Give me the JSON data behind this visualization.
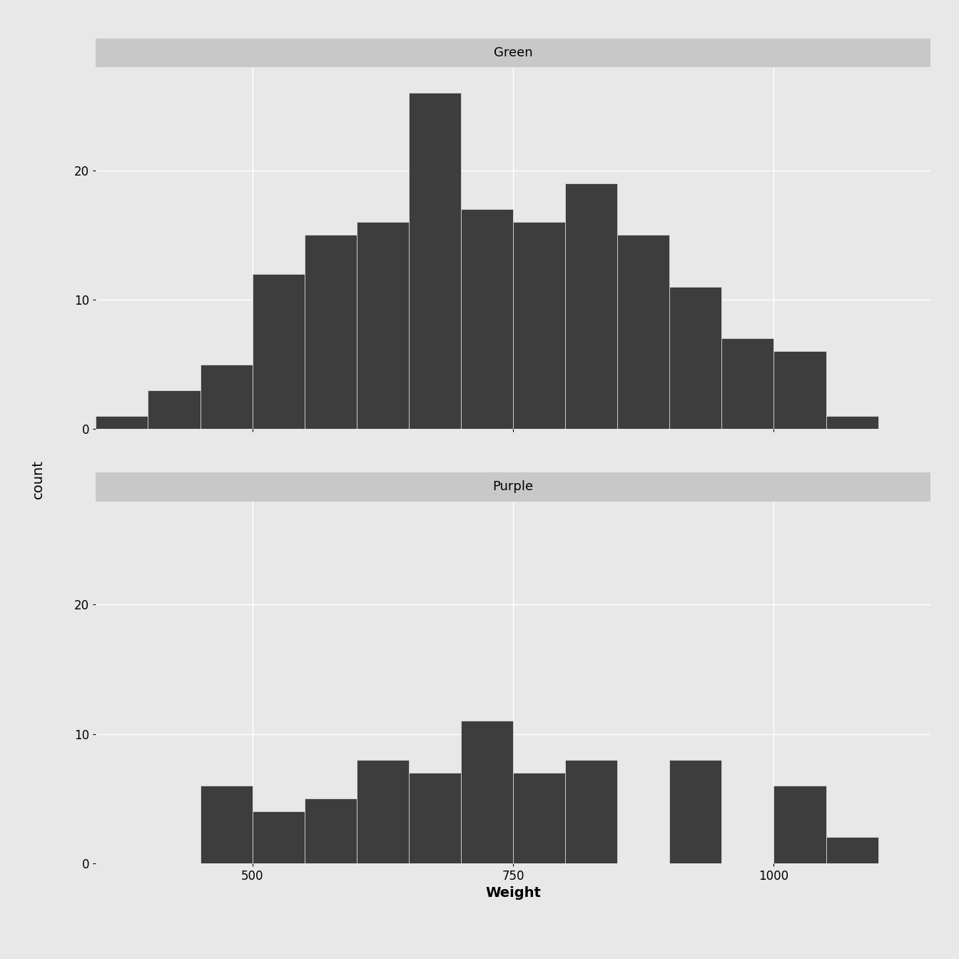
{
  "green_bin_edges": [
    350,
    400,
    450,
    500,
    550,
    600,
    650,
    700,
    750,
    800,
    850,
    900,
    950,
    1000,
    1050,
    1100
  ],
  "green_counts": [
    1,
    3,
    5,
    12,
    15,
    16,
    26,
    17,
    16,
    19,
    15,
    11,
    7,
    6,
    1
  ],
  "purple_bin_edges": [
    350,
    400,
    450,
    500,
    550,
    600,
    650,
    700,
    750,
    800,
    850,
    900,
    950,
    1000,
    1050,
    1100
  ],
  "purple_counts": [
    0,
    0,
    6,
    4,
    5,
    8,
    7,
    11,
    7,
    8,
    0,
    8,
    0,
    6,
    2
  ],
  "bar_color": "#3d3d3d",
  "bar_edgecolor": "#3d3d3d",
  "bg_panel": "#e8e8e8",
  "bg_figure": "#e8e8e8",
  "strip_color": "#c8c8c8",
  "grid_color": "#ffffff",
  "title_green": "Green",
  "title_purple": "Purple",
  "ylabel": "count",
  "xlabel": "Weight",
  "yticks_green": [
    0,
    10,
    20
  ],
  "yticks_purple": [
    0,
    10,
    20
  ],
  "xticks": [
    500,
    750,
    1000
  ],
  "xlim": [
    350,
    1150
  ],
  "ylim_green": [
    0,
    28
  ],
  "ylim_purple": [
    0,
    28
  ],
  "title_fontsize": 13,
  "axis_label_fontsize": 14,
  "tick_fontsize": 12
}
